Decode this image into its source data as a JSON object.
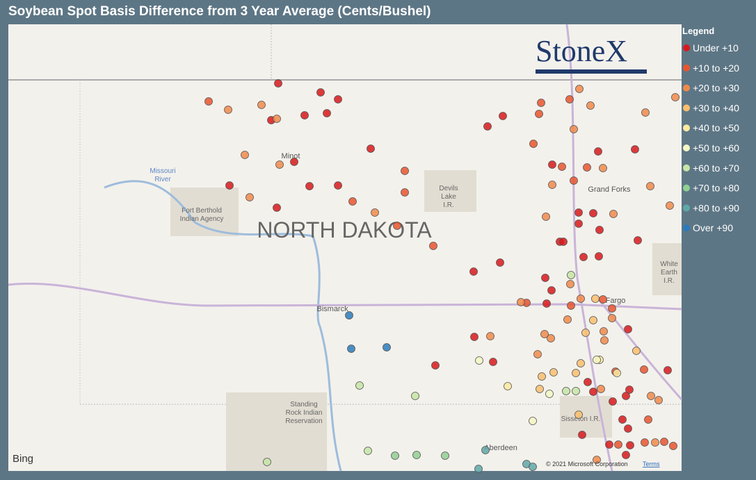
{
  "title": "Soybean Spot Basis Difference from 3 Year Average (Cents/Bushel)",
  "legend": {
    "title": "Legend",
    "items": [
      {
        "name": "Under +10",
        "color": "#d7191c"
      },
      {
        "name": "+10 to +20",
        "color": "#e8552f"
      },
      {
        "name": "+20 to +30",
        "color": "#f08a4b"
      },
      {
        "name": "+30 to +40",
        "color": "#f8be6e"
      },
      {
        "name": "+40 to +50",
        "color": "#fde9a0"
      },
      {
        "name": "+50 to +60",
        "color": "#f4f7c4"
      },
      {
        "name": "+60 to +70",
        "color": "#c6e5a6"
      },
      {
        "name": "+70 to +80",
        "color": "#91cf93"
      },
      {
        "name": "+80 to +90",
        "color": "#5fa8a8"
      },
      {
        "name": "Over +90",
        "color": "#2b7bba"
      }
    ]
  },
  "logo": "StoneX",
  "map_labels": {
    "state": "NORTH DAKOTA",
    "missouri": "Missouri",
    "river": "River",
    "minot": "Minot",
    "fb1": "Fort Berthold",
    "fb2": "Indian Agency",
    "dl1": "Devils",
    "dl2": "Lake",
    "dl3": "I.R.",
    "gf": "Grand Forks",
    "we1": "White",
    "we2": "Earth",
    "we3": "I.R.",
    "bismarck": "Bismarck",
    "fargo": "Fargo",
    "sr1": "Standing",
    "sr2": "Rock Indian",
    "sr3": "Reservation",
    "sisseton": "Sisseton I.R.",
    "aberdeen": "Aberdeen"
  },
  "attribution": "© 2021 Microsoft Corporation",
  "terms": "Terms",
  "bing": "Bing"
}
